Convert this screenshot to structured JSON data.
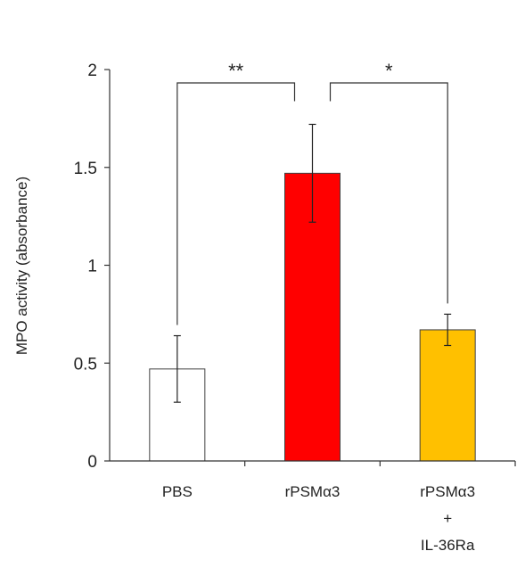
{
  "chart_data": {
    "type": "bar",
    "title": "",
    "xlabel": "",
    "ylabel": "MPO activity (absorbance)",
    "ylim": [
      0,
      2
    ],
    "yticks": [
      0,
      0.5,
      1,
      1.5,
      2
    ],
    "ytick_labels": [
      "0",
      "0.5",
      "1",
      "1.5",
      "2"
    ],
    "grid": false,
    "legend": "none",
    "categories": [
      {
        "lines": [
          "PBS"
        ]
      },
      {
        "lines": [
          "rPSMα3"
        ]
      },
      {
        "lines": [
          "rPSMα3",
          "+",
          "IL-36Ra"
        ]
      }
    ],
    "values": [
      0.47,
      1.47,
      0.67
    ],
    "errors": [
      0.17,
      0.25,
      0.08
    ],
    "colors": [
      "#ffffff",
      "#ff0000",
      "#ffc000"
    ],
    "bar_stroke": "#404040",
    "significance": [
      {
        "from": 0,
        "to": 1,
        "label": "**"
      },
      {
        "from": 1,
        "to": 2,
        "label": "*"
      }
    ]
  }
}
